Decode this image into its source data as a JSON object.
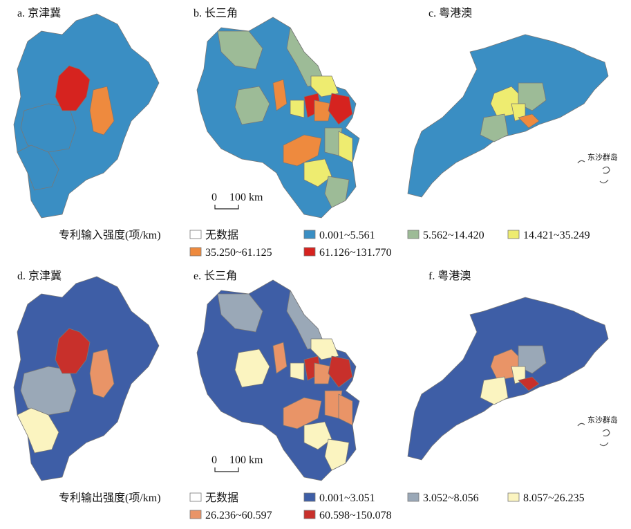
{
  "panels": [
    {
      "label": "a. 京津冀"
    },
    {
      "label": "b. 长三角",
      "scale_zero": "0",
      "scale_length": "100 km"
    },
    {
      "label": "c. 粤港澳",
      "inset": "东沙群岛"
    },
    {
      "label": "d. 京津冀"
    },
    {
      "label": "e. 长三角",
      "scale_zero": "0",
      "scale_length": "100 km"
    },
    {
      "label": "f. 粤港澳",
      "inset": "东沙群岛"
    }
  ],
  "legends": [
    {
      "title": "专利输入强度(项/km)",
      "items": [
        {
          "label": "无数据",
          "color": "#ffffff"
        },
        {
          "label": "0.001~5.561",
          "color": "#3a8ec3"
        },
        {
          "label": "5.562~14.420",
          "color": "#9dbb97"
        },
        {
          "label": "14.421~35.249",
          "color": "#eeec70"
        },
        {
          "label": "35.250~61.125",
          "color": "#ee8a3e"
        },
        {
          "label": "61.126~131.770",
          "color": "#d6231f"
        }
      ]
    },
    {
      "title": "专利输出强度(项/km)",
      "items": [
        {
          "label": "无数据",
          "color": "#ffffff"
        },
        {
          "label": "0.001~3.051",
          "color": "#3e5ea6"
        },
        {
          "label": "3.052~8.056",
          "color": "#9aa8b7"
        },
        {
          "label": "8.057~26.235",
          "color": "#fbf4c0"
        },
        {
          "label": "26.236~60.597",
          "color": "#e99467"
        },
        {
          "label": "60.598~150.078",
          "color": "#c8302b"
        }
      ]
    }
  ]
}
